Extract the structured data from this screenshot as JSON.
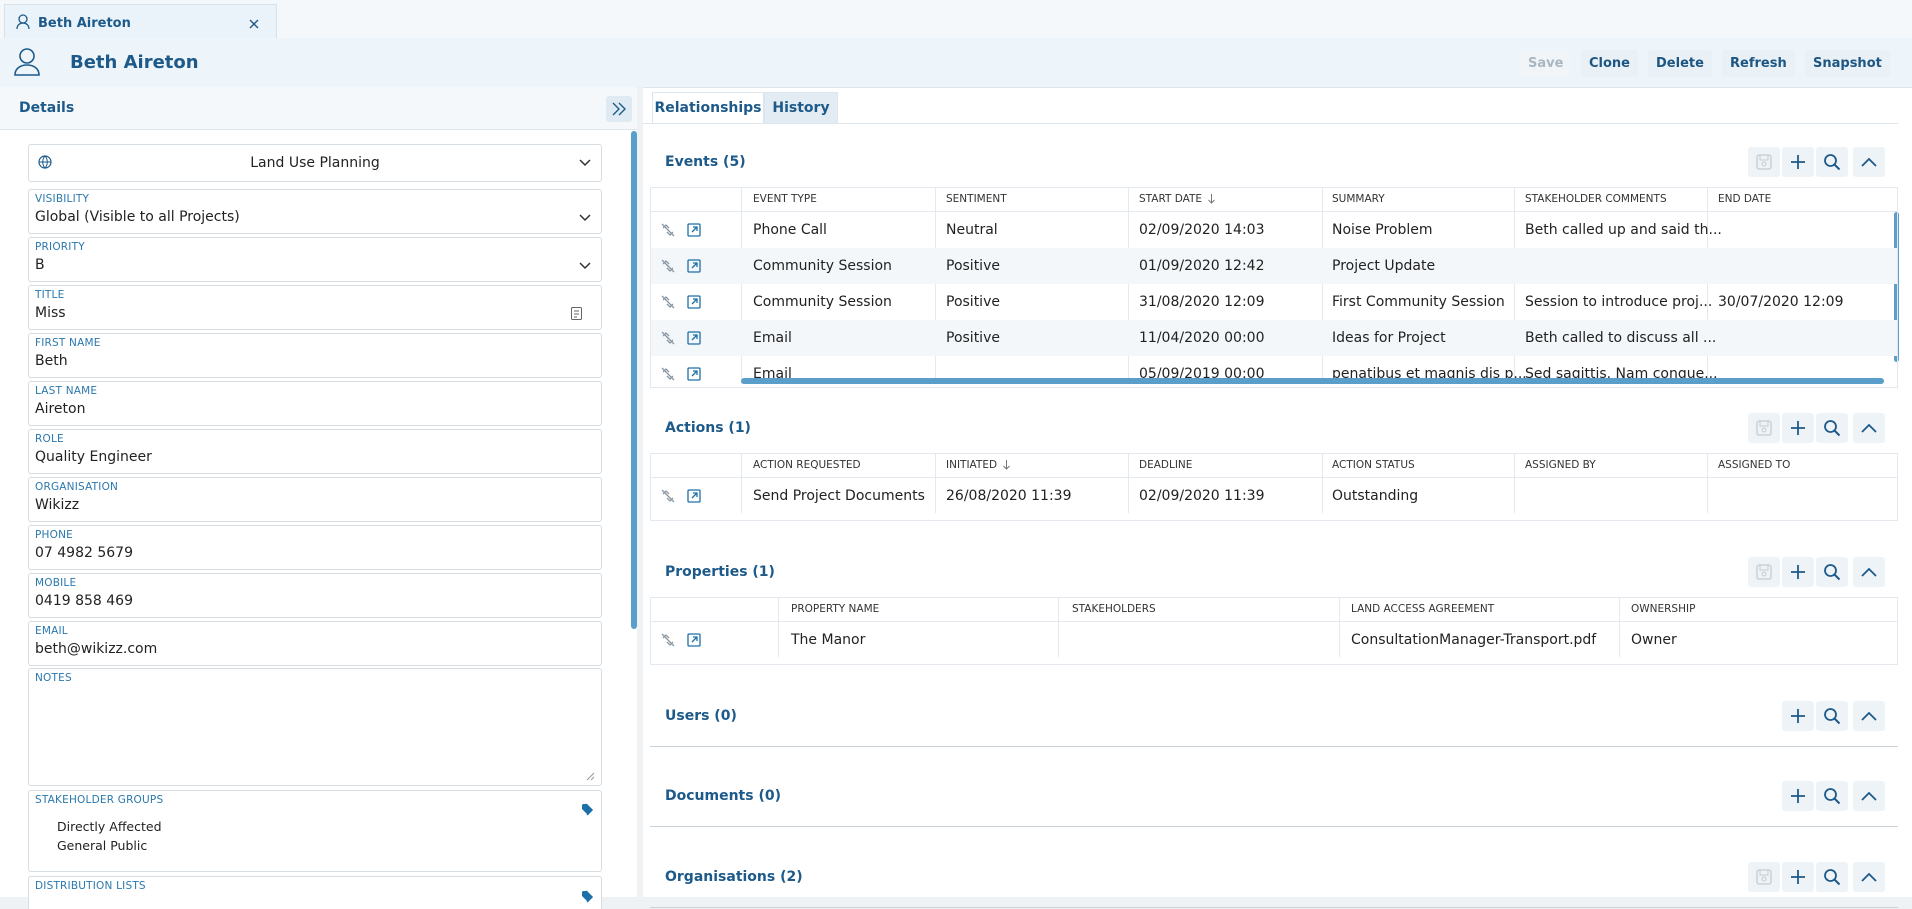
{
  "tab": {
    "label": "Beth Aireton"
  },
  "header": {
    "title": "Beth Aireton",
    "buttons": [
      "Save",
      "Clone",
      "Delete",
      "Refresh",
      "Snapshot"
    ]
  },
  "details": {
    "title": "Details",
    "project": "Land Use Planning",
    "fields": [
      {
        "label": "VISIBILITY",
        "value": "Global (Visible to all Projects)"
      },
      {
        "label": "PRIORITY",
        "value": "B"
      },
      {
        "label": "TITLE",
        "value": "Miss"
      },
      {
        "label": "FIRST NAME",
        "value": "Beth"
      },
      {
        "label": "LAST NAME",
        "value": "Aireton"
      },
      {
        "label": "ROLE",
        "value": "Quality Engineer"
      },
      {
        "label": "ORGANISATION",
        "value": "Wikizz"
      },
      {
        "label": "PHONE",
        "value": "07 4982 5679"
      },
      {
        "label": "MOBILE",
        "value": "0419 858 469"
      },
      {
        "label": "EMAIL",
        "value": "beth@wikizz.com"
      }
    ],
    "notes": {
      "label": "NOTES"
    },
    "stakeholder_groups": {
      "label": "STAKEHOLDER GROUPS",
      "items": [
        "Directly Affected",
        "General Public"
      ]
    },
    "distribution_lists": {
      "label": "DISTRIBUTION LISTS"
    }
  },
  "tabs": [
    "Relationships",
    "History"
  ],
  "sections": [
    {
      "title": "Events (5)",
      "save": true,
      "sorted_column": 2,
      "columns": [
        "EVENT TYPE",
        "SENTIMENT",
        "START DATE",
        "SUMMARY",
        "STAKEHOLDER COMMENTS",
        "END DATE"
      ],
      "rows": [
        [
          "Phone Call",
          "Neutral",
          "02/09/2020 14:03",
          "Noise Problem",
          "Beth called up and said th...",
          null
        ],
        [
          "Community Session",
          "Positive",
          "01/09/2020 12:42",
          "Project Update",
          null,
          null
        ],
        [
          "Community Session",
          "Positive",
          "31/08/2020 12:09",
          "First Community Session",
          "Session to introduce proj...",
          "30/07/2020 12:09"
        ],
        [
          "Email",
          "Positive",
          "11/04/2020 00:00",
          "Ideas for Project",
          "Beth called to discuss all ...",
          null
        ],
        [
          "Email",
          null,
          "05/09/2019 00:00",
          "penatibus et magnis dis p...",
          "Sed sagittis. Nam congue...",
          null
        ]
      ]
    },
    {
      "title": "Actions (1)",
      "save": true,
      "sorted_column": 1,
      "columns": [
        "ACTION REQUESTED",
        "INITIATED",
        "DEADLINE",
        "ACTION STATUS",
        "ASSIGNED BY",
        "ASSIGNED TO"
      ],
      "rows": [
        [
          "Send Project Documents",
          "26/08/2020 11:39",
          "02/09/2020 11:39",
          "Outstanding",
          null,
          null
        ]
      ]
    },
    {
      "title": "Properties (1)",
      "save": true,
      "columns": [
        "PROPERTY NAME",
        "STAKEHOLDERS",
        "LAND ACCESS AGREEMENT",
        "OWNERSHIP"
      ],
      "rows": [
        [
          "The Manor",
          null,
          "ConsultationManager-Transport.pdf",
          "Owner"
        ]
      ]
    },
    {
      "title": "Users (0)",
      "save": false
    },
    {
      "title": "Documents (0)",
      "save": false
    },
    {
      "title": "Organisations (2)",
      "save": true
    }
  ]
}
